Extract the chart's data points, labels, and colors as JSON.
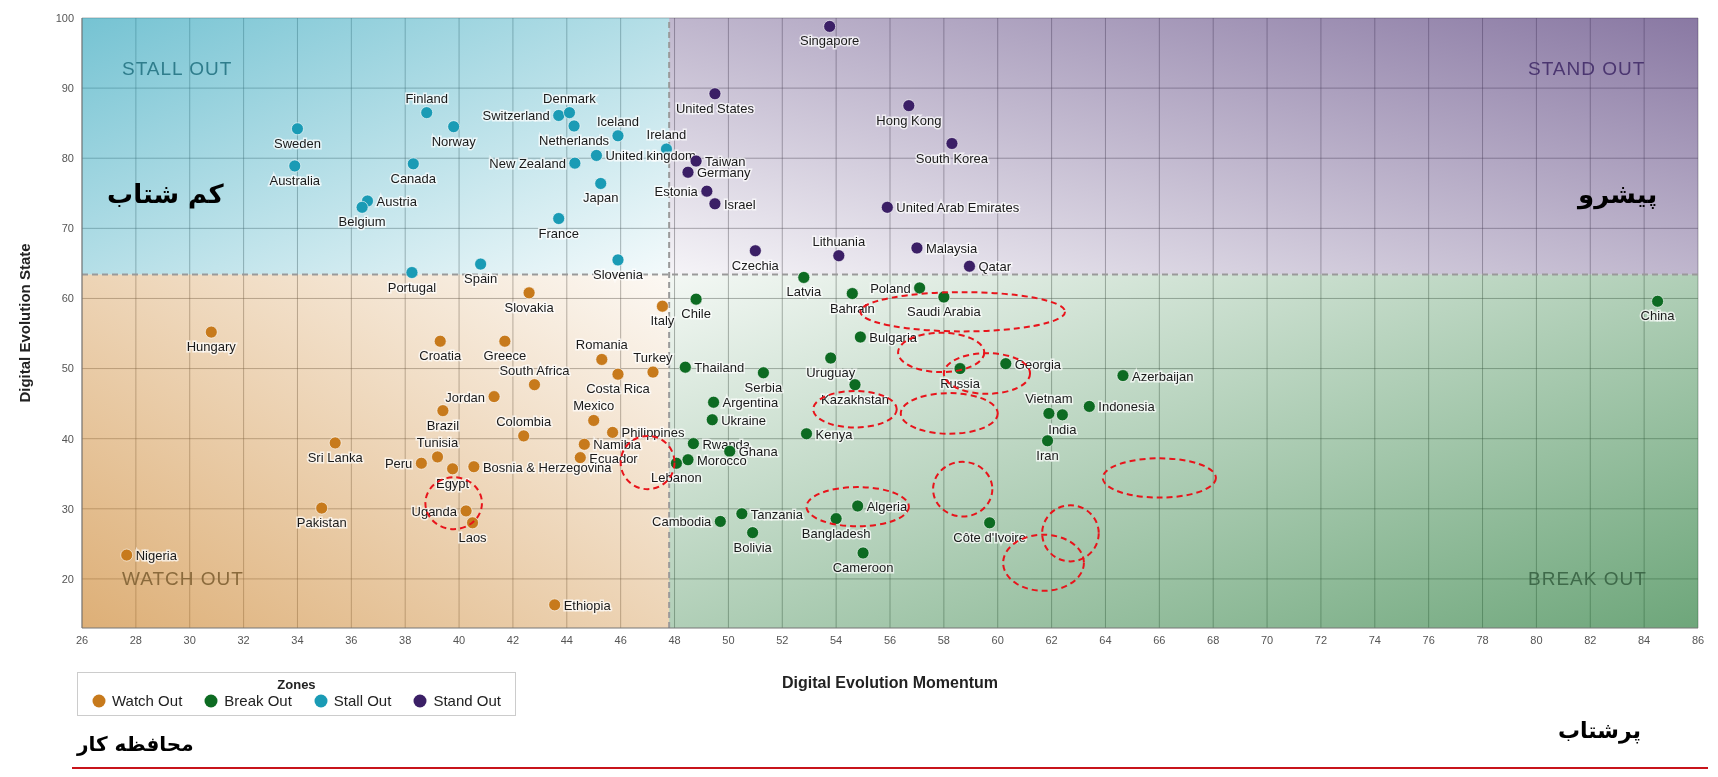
{
  "chart_data": {
    "type": "scatter",
    "xlabel": "Digital Evolution Momentum",
    "ylabel": "Digital Evolution State",
    "legend_title": "Zones",
    "legend": "bottom left",
    "grid": true,
    "marker": "circle",
    "xlim": [
      26,
      86
    ],
    "xticks": [
      26,
      28,
      30,
      32,
      34,
      36,
      38,
      40,
      42,
      44,
      46,
      48,
      50,
      52,
      54,
      56,
      58,
      60,
      62,
      64,
      66,
      68,
      70,
      72,
      74,
      76,
      78,
      80,
      82,
      84,
      86
    ],
    "ylim": [
      13,
      100
    ],
    "yticks": [
      20,
      30,
      40,
      50,
      60,
      70,
      80,
      90,
      100
    ],
    "ref_lines": [
      {
        "axis": "x",
        "value": 47.8,
        "line_style": "dashed",
        "color": "#9a9a9a"
      },
      {
        "axis": "y",
        "value": 63.4,
        "line_style": "dashed",
        "color": "#9a9a9a"
      }
    ],
    "annotations": [
      "STALL OUT",
      "STAND OUT",
      "WATCH OUT",
      "BREAK OUT",
      "کم شتاب",
      "پیشرو",
      "پرشتاب",
      "محافظه کار"
    ],
    "series": [
      {
        "name": "Watch Out",
        "color": "#c77a1c",
        "x": [
          30.8,
          42.6,
          47.55,
          39.3,
          41.7,
          42.8,
          45.3,
          47.2,
          45.9,
          41.3,
          39.4,
          45.0,
          42.4,
          45.7,
          35.4,
          44.65,
          39.2,
          44.5,
          38.6,
          40.55,
          39.76,
          40.26,
          40.5,
          34.9,
          27.66,
          43.55
        ],
        "values": [
          55.2,
          60.8,
          58.9,
          53.9,
          53.9,
          47.7,
          51.3,
          49.5,
          49.2,
          46.0,
          44.0,
          42.6,
          40.4,
          40.9,
          39.4,
          39.2,
          37.4,
          37.3,
          36.5,
          36.0,
          35.7,
          29.7,
          28.0,
          30.1,
          23.4,
          16.3
        ],
        "value_labels": [
          "Hungary",
          "Slovakia",
          "Italy",
          "Croatia",
          "Greece",
          "South Africa",
          "Romania",
          "Turkey",
          "Costa Rica",
          "Jordan",
          "Brazil",
          "Mexico",
          "Colombia",
          "Philippines",
          "Sri Lanka",
          "Namibia",
          "Tunisia",
          "Ecuador",
          "Peru",
          "Bosnia & Herzegovina",
          "Egypt",
          "Uganda",
          "Laos",
          "Pakistan",
          "Nigeria",
          "Ethiopia"
        ]
      },
      {
        "name": "Break Out",
        "color": "#0d6b22",
        "x": [
          52.8,
          54.6,
          57.1,
          58.0,
          48.8,
          84.5,
          54.9,
          48.4,
          51.3,
          53.8,
          54.7,
          58.6,
          60.3,
          64.65,
          63.4,
          61.9,
          62.4,
          61.85,
          49.45,
          49.4,
          52.9,
          48.7,
          50.05,
          48.5,
          48.07,
          54.8,
          54.0,
          50.5,
          49.7,
          50.9,
          59.7,
          55.0
        ],
        "values": [
          63.0,
          60.7,
          61.5,
          60.2,
          59.9,
          59.6,
          54.5,
          50.2,
          49.4,
          51.5,
          47.7,
          50.0,
          50.7,
          49.0,
          44.6,
          43.6,
          43.4,
          39.7,
          45.2,
          42.7,
          40.7,
          39.3,
          38.2,
          37.0,
          36.5,
          30.4,
          28.6,
          29.3,
          28.2,
          26.6,
          28.0,
          23.7
        ],
        "value_labels": [
          "Latvia",
          "Bahrain",
          "Poland",
          "Saudi Arabia",
          "Chile",
          "China",
          "Bulgaria",
          "Thailand",
          "Serbia",
          "Uruguay",
          "Kazakhstan",
          "Russia",
          "Georgia",
          "Azerbaijan",
          "Indonesia",
          "Vietnam",
          "India",
          "Iran",
          "Argentina",
          "Ukraine",
          "Kenya",
          "Rwanda",
          "Ghana",
          "Morocco",
          "Lebanon",
          "Algeria",
          "Bangladesh",
          "Tanzania",
          "Cambodia",
          "Bolivia",
          "Côte d'Ivoire",
          "Cameroon"
        ]
      },
      {
        "name": "Stall Out",
        "color": "#1a9bb5",
        "x": [
          34.0,
          33.9,
          38.8,
          39.8,
          38.3,
          36.6,
          36.4,
          43.7,
          44.1,
          44.27,
          44.3,
          43.7,
          38.25,
          40.8,
          45.9,
          47.7,
          45.1,
          45.26,
          45.9
        ],
        "values": [
          84.2,
          78.9,
          86.5,
          84.5,
          79.2,
          73.9,
          73.0,
          86.1,
          86.5,
          84.6,
          79.3,
          71.4,
          63.7,
          64.9,
          83.2,
          81.3,
          80.4,
          76.4,
          65.5
        ],
        "value_labels": [
          "Sweden",
          "Australia",
          "Finland",
          "Norway",
          "Canada",
          "Austria",
          "Belgium",
          "Switzerland",
          "Denmark",
          "Netherlands",
          "New Zealand",
          "France",
          "Portugal",
          "Spain",
          "Iceland",
          "Ireland",
          "United kingdom",
          "Japan",
          "Slovenia"
        ]
      },
      {
        "name": "Stand Out",
        "color": "#3b1f66",
        "x": [
          53.76,
          49.5,
          48.8,
          48.5,
          49.2,
          49.5,
          56.7,
          58.3,
          55.9,
          51.0,
          54.1,
          57.0,
          58.95
        ],
        "values": [
          98.8,
          89.2,
          79.6,
          78.0,
          75.3,
          73.5,
          87.5,
          82.1,
          73.0,
          66.8,
          66.1,
          67.2,
          64.6
        ],
        "value_labels": [
          "Singapore",
          "United States",
          "Taiwan",
          "Germany",
          "Estonia",
          "Israel",
          "Hong Kong",
          "South Korea",
          "United Arab Emirates",
          "Czechia",
          "Lithuania",
          "Malaysia",
          "Qatar"
        ]
      }
    ]
  }
}
